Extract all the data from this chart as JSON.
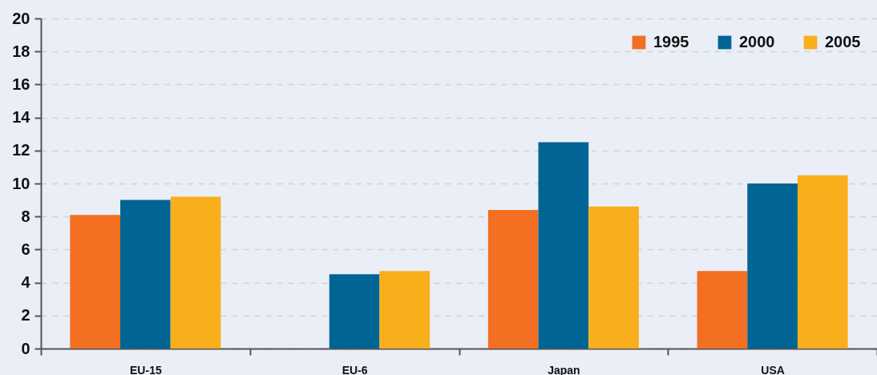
{
  "chart_data": {
    "type": "bar",
    "categories": [
      "EU-15",
      "EU-6",
      "Japan",
      "USA"
    ],
    "series": [
      {
        "name": "1995",
        "color": "#f36f21",
        "values": [
          8.1,
          null,
          8.4,
          4.7
        ]
      },
      {
        "name": "2000",
        "color": "#006494",
        "values": [
          9.0,
          4.5,
          12.5,
          10.0
        ]
      },
      {
        "name": "2005",
        "color": "#f9ae1b",
        "values": [
          9.2,
          4.7,
          8.6,
          10.5
        ]
      }
    ],
    "ylim": [
      0,
      20
    ],
    "yticks": [
      0,
      2,
      4,
      6,
      8,
      10,
      12,
      14,
      16,
      18,
      20
    ],
    "grid": "y",
    "legend": "top right"
  }
}
